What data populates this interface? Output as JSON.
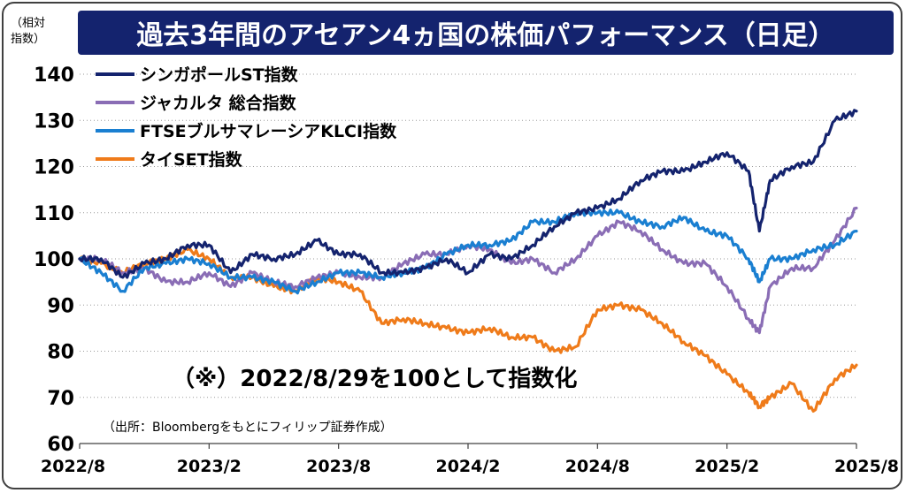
{
  "chart_data": {
    "type": "line",
    "title": "過去3年間のアセアン4ヵ国の株価パフォーマンス（日足）",
    "ylabel": "（相対\n指数）",
    "ylim": [
      60,
      140
    ],
    "yticks": [
      60,
      70,
      80,
      90,
      100,
      110,
      120,
      130,
      140
    ],
    "xlim": [
      "2022/8",
      "2025/8"
    ],
    "xticks": [
      "2022/8",
      "2023/2",
      "2023/8",
      "2024/2",
      "2024/8",
      "2025/2",
      "2025/8"
    ],
    "grid": "horizontal-dotted",
    "legend_position": "top-left",
    "annotation": "（※）2022/8/29を100として指数化",
    "source": "（出所：Bloombergをもとにフィリップ証券作成）",
    "series": [
      {
        "name": "シンガポールST指数",
        "color": "#14236e",
        "values": [
          [
            "2022/8",
            100
          ],
          [
            "2022/9",
            100
          ],
          [
            "2022/10",
            96
          ],
          [
            "2022/11",
            99
          ],
          [
            "2022/12",
            100
          ],
          [
            "2023/1",
            103
          ],
          [
            "2023/2",
            103
          ],
          [
            "2023/3",
            97
          ],
          [
            "2023/4",
            101
          ],
          [
            "2023/5",
            100
          ],
          [
            "2023/6",
            101
          ],
          [
            "2023/7",
            104
          ],
          [
            "2023/8",
            101
          ],
          [
            "2023/9",
            101
          ],
          [
            "2023/10",
            97
          ],
          [
            "2023/11",
            97
          ],
          [
            "2023/12",
            98
          ],
          [
            "2024/1",
            100
          ],
          [
            "2024/2",
            97
          ],
          [
            "2024/3",
            101
          ],
          [
            "2024/4",
            100
          ],
          [
            "2024/5",
            103
          ],
          [
            "2024/6",
            107
          ],
          [
            "2024/7",
            110
          ],
          [
            "2024/8",
            111
          ],
          [
            "2024/9",
            113
          ],
          [
            "2024/10",
            117
          ],
          [
            "2024/11",
            119
          ],
          [
            "2024/12",
            119
          ],
          [
            "2025/1",
            121
          ],
          [
            "2025/2",
            123
          ],
          [
            "2025/3",
            119
          ],
          [
            "2025/3.5",
            106
          ],
          [
            "2025/4",
            117
          ],
          [
            "2025/5",
            120
          ],
          [
            "2025/6",
            121
          ],
          [
            "2025/7",
            130
          ],
          [
            "2025/8",
            132
          ]
        ]
      },
      {
        "name": "ジャカルタ 総合指数",
        "color": "#8a6db5",
        "values": [
          [
            "2022/8",
            100
          ],
          [
            "2022/9",
            100
          ],
          [
            "2022/10",
            97
          ],
          [
            "2022/11",
            98
          ],
          [
            "2022/12",
            95
          ],
          [
            "2023/1",
            95
          ],
          [
            "2023/2",
            97
          ],
          [
            "2023/3",
            94
          ],
          [
            "2023/4",
            97
          ],
          [
            "2023/5",
            95
          ],
          [
            "2023/6",
            94
          ],
          [
            "2023/7",
            96
          ],
          [
            "2023/8",
            97
          ],
          [
            "2023/9",
            96
          ],
          [
            "2023/10",
            96
          ],
          [
            "2023/11",
            99
          ],
          [
            "2023/12",
            101
          ],
          [
            "2024/1",
            101
          ],
          [
            "2024/2",
            103
          ],
          [
            "2024/3",
            102
          ],
          [
            "2024/4",
            99
          ],
          [
            "2024/5",
            100
          ],
          [
            "2024/6",
            97
          ],
          [
            "2024/7",
            100
          ],
          [
            "2024/8",
            105
          ],
          [
            "2024/9",
            108
          ],
          [
            "2024/10",
            106
          ],
          [
            "2024/11",
            102
          ],
          [
            "2024/12",
            99
          ],
          [
            "2025/1",
            99
          ],
          [
            "2025/2",
            94
          ],
          [
            "2025/3",
            87
          ],
          [
            "2025/3.5",
            84
          ],
          [
            "2025/4",
            94
          ],
          [
            "2025/5",
            98
          ],
          [
            "2025/6",
            98
          ],
          [
            "2025/7",
            104
          ],
          [
            "2025/8",
            111
          ]
        ]
      },
      {
        "name": "FTSEブルサマレーシアKLCI指数",
        "color": "#1a7fd1",
        "values": [
          [
            "2022/8",
            100
          ],
          [
            "2022/9",
            97
          ],
          [
            "2022/10",
            93
          ],
          [
            "2022/11",
            98
          ],
          [
            "2022/12",
            99
          ],
          [
            "2023/1",
            100
          ],
          [
            "2023/2",
            99
          ],
          [
            "2023/3",
            96
          ],
          [
            "2023/4",
            96
          ],
          [
            "2023/5",
            95
          ],
          [
            "2023/6",
            93
          ],
          [
            "2023/7",
            95
          ],
          [
            "2023/8",
            97
          ],
          [
            "2023/9",
            97
          ],
          [
            "2023/10",
            96
          ],
          [
            "2023/11",
            97
          ],
          [
            "2023/12",
            98
          ],
          [
            "2024/1",
            101
          ],
          [
            "2024/2",
            103
          ],
          [
            "2024/3",
            103
          ],
          [
            "2024/4",
            104
          ],
          [
            "2024/5",
            108
          ],
          [
            "2024/6",
            108
          ],
          [
            "2024/7",
            110
          ],
          [
            "2024/8",
            110
          ],
          [
            "2024/9",
            110
          ],
          [
            "2024/10",
            108
          ],
          [
            "2024/11",
            107
          ],
          [
            "2024/12",
            109
          ],
          [
            "2025/1",
            106
          ],
          [
            "2025/2",
            105
          ],
          [
            "2025/3",
            100
          ],
          [
            "2025/3.5",
            95
          ],
          [
            "2025/4",
            100
          ],
          [
            "2025/5",
            100
          ],
          [
            "2025/6",
            102
          ],
          [
            "2025/7",
            103
          ],
          [
            "2025/8",
            106
          ]
        ]
      },
      {
        "name": "タイSET指数",
        "color": "#ef7b1a",
        "values": [
          [
            "2022/8",
            100
          ],
          [
            "2022/9",
            99
          ],
          [
            "2022/10",
            97
          ],
          [
            "2022/11",
            99
          ],
          [
            "2022/12",
            100
          ],
          [
            "2023/1",
            102
          ],
          [
            "2023/2",
            100
          ],
          [
            "2023/3",
            96
          ],
          [
            "2023/4",
            96
          ],
          [
            "2023/5",
            94
          ],
          [
            "2023/6",
            93
          ],
          [
            "2023/7",
            96
          ],
          [
            "2023/8",
            95
          ],
          [
            "2023/9",
            93
          ],
          [
            "2023/10",
            86
          ],
          [
            "2023/11",
            87
          ],
          [
            "2023/12",
            86
          ],
          [
            "2024/1",
            85
          ],
          [
            "2024/2",
            84
          ],
          [
            "2024/3",
            85
          ],
          [
            "2024/4",
            83
          ],
          [
            "2024/5",
            83
          ],
          [
            "2024/6",
            80
          ],
          [
            "2024/7",
            81
          ],
          [
            "2024/8",
            89
          ],
          [
            "2024/9",
            90
          ],
          [
            "2024/10",
            89
          ],
          [
            "2024/11",
            86
          ],
          [
            "2024/12",
            82
          ],
          [
            "2025/1",
            79
          ],
          [
            "2025/2",
            75
          ],
          [
            "2025/3",
            71
          ],
          [
            "2025/3.5",
            68
          ],
          [
            "2025/4",
            70
          ],
          [
            "2025/5",
            73
          ],
          [
            "2025/6",
            67
          ],
          [
            "2025/7",
            74
          ],
          [
            "2025/8",
            77
          ]
        ]
      }
    ]
  }
}
